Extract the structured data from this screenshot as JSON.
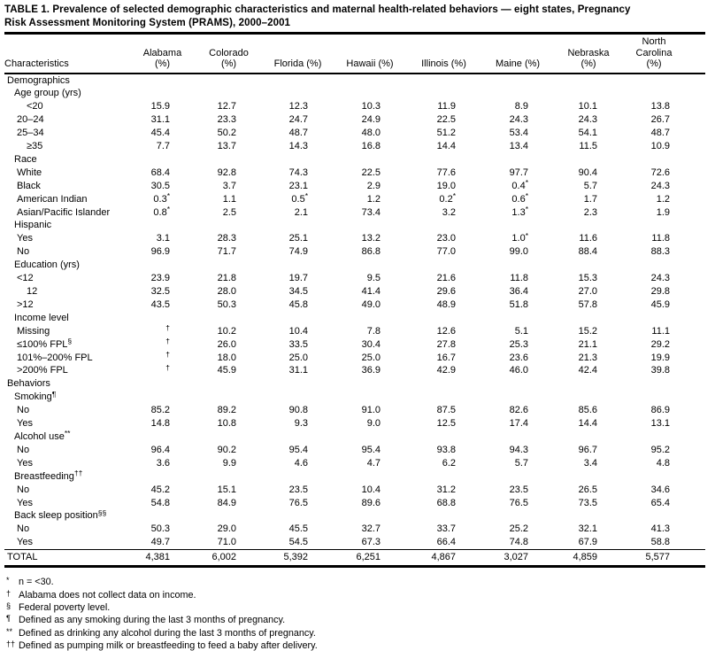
{
  "title": {
    "line1": "TABLE 1. Prevalence of selected demographic characteristics and maternal health-related behaviors — eight states, Pregnancy",
    "line2": "Risk Assessment Monitoring System (PRAMS), 2000–2001"
  },
  "table": {
    "columns": [
      {
        "label": "Characteristics"
      },
      {
        "label": "Alabama (%)"
      },
      {
        "label": "Colorado (%)"
      },
      {
        "label": "Florida (%)"
      },
      {
        "label": "Hawaii (%)"
      },
      {
        "label": "Illinois (%)"
      },
      {
        "label": "Maine (%)"
      },
      {
        "label": "Nebraska (%)"
      },
      {
        "label": "Carolina (%)",
        "top_label": "North"
      }
    ],
    "rows": [
      {
        "label": "Demographics",
        "indent": 0,
        "values": null
      },
      {
        "label": "Age group (yrs)",
        "indent": 1,
        "values": null
      },
      {
        "label": "<20",
        "indent": 3,
        "values": [
          "15.9",
          "12.7",
          "12.3",
          "10.3",
          "11.9",
          "8.9",
          "10.1",
          "13.8"
        ]
      },
      {
        "label": "20–24",
        "indent": 2,
        "values": [
          "31.1",
          "23.3",
          "24.7",
          "24.9",
          "22.5",
          "24.3",
          "24.3",
          "26.7"
        ]
      },
      {
        "label": "25–34",
        "indent": 2,
        "values": [
          "45.4",
          "50.2",
          "48.7",
          "48.0",
          "51.2",
          "53.4",
          "54.1",
          "48.7"
        ]
      },
      {
        "label": "≥35",
        "indent": 3,
        "values": [
          "7.7",
          "13.7",
          "14.3",
          "16.8",
          "14.4",
          "13.4",
          "11.5",
          "10.9"
        ]
      },
      {
        "label": "Race",
        "indent": 1,
        "values": null
      },
      {
        "label": "White",
        "indent": 2,
        "values": [
          "68.4",
          "92.8",
          "74.3",
          "22.5",
          "77.6",
          "97.7",
          "90.4",
          "72.6"
        ]
      },
      {
        "label": "Black",
        "indent": 2,
        "values": [
          "30.5",
          "3.7",
          "23.1",
          "2.9",
          "19.0",
          "0.4*",
          "5.7",
          "24.3"
        ]
      },
      {
        "label": "American Indian",
        "indent": 2,
        "values": [
          "0.3*",
          "1.1",
          "0.5*",
          "1.2",
          "0.2*",
          "0.6*",
          "1.7",
          "1.2"
        ]
      },
      {
        "label": "Asian/Pacific Islander",
        "indent": 2,
        "values": [
          "0.8*",
          "2.5",
          "2.1",
          "73.4",
          "3.2",
          "1.3*",
          "2.3",
          "1.9"
        ]
      },
      {
        "label": "Hispanic",
        "indent": 1,
        "values": null
      },
      {
        "label": "Yes",
        "indent": 2,
        "values": [
          "3.1",
          "28.3",
          "25.1",
          "13.2",
          "23.0",
          "1.0*",
          "11.6",
          "11.8"
        ]
      },
      {
        "label": "No",
        "indent": 2,
        "values": [
          "96.9",
          "71.7",
          "74.9",
          "86.8",
          "77.0",
          "99.0",
          "88.4",
          "88.3"
        ]
      },
      {
        "label": "Education (yrs)",
        "indent": 1,
        "values": null
      },
      {
        "label": "<12",
        "indent": 2,
        "values": [
          "23.9",
          "21.8",
          "19.7",
          "9.5",
          "21.6",
          "11.8",
          "15.3",
          "24.3"
        ]
      },
      {
        "label": "12",
        "indent": 3,
        "values": [
          "32.5",
          "28.0",
          "34.5",
          "41.4",
          "29.6",
          "36.4",
          "27.0",
          "29.8"
        ]
      },
      {
        "label": ">12",
        "indent": 2,
        "values": [
          "43.5",
          "50.3",
          "45.8",
          "49.0",
          "48.9",
          "51.8",
          "57.8",
          "45.9"
        ]
      },
      {
        "label": "Income level",
        "indent": 1,
        "values": null
      },
      {
        "label": "Missing",
        "indent": 2,
        "values": [
          "†",
          "10.2",
          "10.4",
          "7.8",
          "12.6",
          "5.1",
          "15.2",
          "11.1"
        ]
      },
      {
        "label": "≤100% FPL",
        "sup": "§",
        "indent": 2,
        "values": [
          "†",
          "26.0",
          "33.5",
          "30.4",
          "27.8",
          "25.3",
          "21.1",
          "29.2"
        ]
      },
      {
        "label": "101%–200% FPL",
        "indent": 2,
        "values": [
          "†",
          "18.0",
          "25.0",
          "25.0",
          "16.7",
          "23.6",
          "21.3",
          "19.9"
        ]
      },
      {
        "label": ">200% FPL",
        "indent": 2,
        "values": [
          "†",
          "45.9",
          "31.1",
          "36.9",
          "42.9",
          "46.0",
          "42.4",
          "39.8"
        ]
      },
      {
        "label": "Behaviors",
        "indent": 0,
        "values": null
      },
      {
        "label": "Smoking",
        "sup": "¶",
        "indent": 1,
        "values": null
      },
      {
        "label": "No",
        "indent": 2,
        "values": [
          "85.2",
          "89.2",
          "90.8",
          "91.0",
          "87.5",
          "82.6",
          "85.6",
          "86.9"
        ]
      },
      {
        "label": "Yes",
        "indent": 2,
        "values": [
          "14.8",
          "10.8",
          "9.3",
          "9.0",
          "12.5",
          "17.4",
          "14.4",
          "13.1"
        ]
      },
      {
        "label": "Alcohol use",
        "sup": "**",
        "indent": 1,
        "values": null
      },
      {
        "label": "No",
        "indent": 2,
        "values": [
          "96.4",
          "90.2",
          "95.4",
          "95.4",
          "93.8",
          "94.3",
          "96.7",
          "95.2"
        ]
      },
      {
        "label": "Yes",
        "indent": 2,
        "values": [
          "3.6",
          "9.9",
          "4.6",
          "4.7",
          "6.2",
          "5.7",
          "3.4",
          "4.8"
        ]
      },
      {
        "label": "Breastfeeding",
        "sup": "††",
        "indent": 1,
        "values": null
      },
      {
        "label": "No",
        "indent": 2,
        "values": [
          "45.2",
          "15.1",
          "23.5",
          "10.4",
          "31.2",
          "23.5",
          "26.5",
          "34.6"
        ]
      },
      {
        "label": "Yes",
        "indent": 2,
        "values": [
          "54.8",
          "84.9",
          "76.5",
          "89.6",
          "68.8",
          "76.5",
          "73.5",
          "65.4"
        ]
      },
      {
        "label": "Back sleep position",
        "sup": "§§",
        "indent": 1,
        "values": null
      },
      {
        "label": "No",
        "indent": 2,
        "values": [
          "50.3",
          "29.0",
          "45.5",
          "32.7",
          "33.7",
          "25.2",
          "32.1",
          "41.3"
        ]
      },
      {
        "label": "Yes",
        "indent": 2,
        "values": [
          "49.7",
          "71.0",
          "54.5",
          "67.3",
          "66.4",
          "74.8",
          "67.9",
          "58.8"
        ]
      },
      {
        "label": "TOTAL",
        "indent": 0,
        "is_total": true,
        "values": [
          "4,381",
          "6,002",
          "5,392",
          "6,251",
          "4,867",
          "3,027",
          "4,859",
          "5,577"
        ]
      }
    ]
  },
  "footnotes": [
    {
      "marker": "*",
      "text": "n = <30."
    },
    {
      "marker": "†",
      "text": "Alabama does not collect data on income."
    },
    {
      "marker": "§",
      "text": "Federal poverty level."
    },
    {
      "marker": "¶",
      "text": "Defined as any smoking during the last 3 months of pregnancy."
    },
    {
      "marker": "**",
      "text": "Defined as drinking any alcohol during the last 3 months of pregnancy."
    },
    {
      "marker": "††",
      "text": "Defined as pumping milk or breastfeeding to feed a baby after delivery."
    },
    {
      "marker": "§§",
      "text": "Defined as whether an infant was put to sleep in the back (supine) position (the recommended position for infants)."
    }
  ],
  "colors": {
    "ink": "#000000",
    "paper": "#ffffff"
  }
}
